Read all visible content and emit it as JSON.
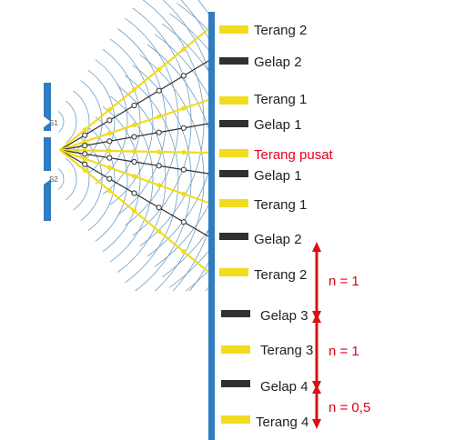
{
  "slits": {
    "s1": "S1",
    "s2": "S2"
  },
  "fringes": [
    {
      "kind": "bright",
      "label": "Terang 2"
    },
    {
      "kind": "dark",
      "label": "Gelap 2"
    },
    {
      "kind": "bright",
      "label": "Terang 1"
    },
    {
      "kind": "dark",
      "label": "Gelap 1"
    },
    {
      "kind": "center",
      "label": "Terang pusat"
    },
    {
      "kind": "dark",
      "label": "Gelap 1"
    },
    {
      "kind": "bright",
      "label": "Terang 1"
    },
    {
      "kind": "dark",
      "label": "Gelap 2"
    },
    {
      "kind": "bright",
      "label": "Terang 2"
    },
    {
      "kind": "dark",
      "label": "Gelap 3"
    },
    {
      "kind": "bright",
      "label": "Terang 3"
    },
    {
      "kind": "dark",
      "label": "Gelap 4"
    },
    {
      "kind": "bright",
      "label": "Terang 4"
    }
  ],
  "n_annotations": [
    "n = 1",
    "n = 1",
    "n = 0,5"
  ],
  "colors": {
    "screen": "#2f7cc0",
    "barrier": "#2f7cc0",
    "wave": "#6e9ec4",
    "bright": "#f2dc1e",
    "dark": "#303030",
    "center_text": "#e0001b",
    "arrow": "#dd0f0f"
  }
}
